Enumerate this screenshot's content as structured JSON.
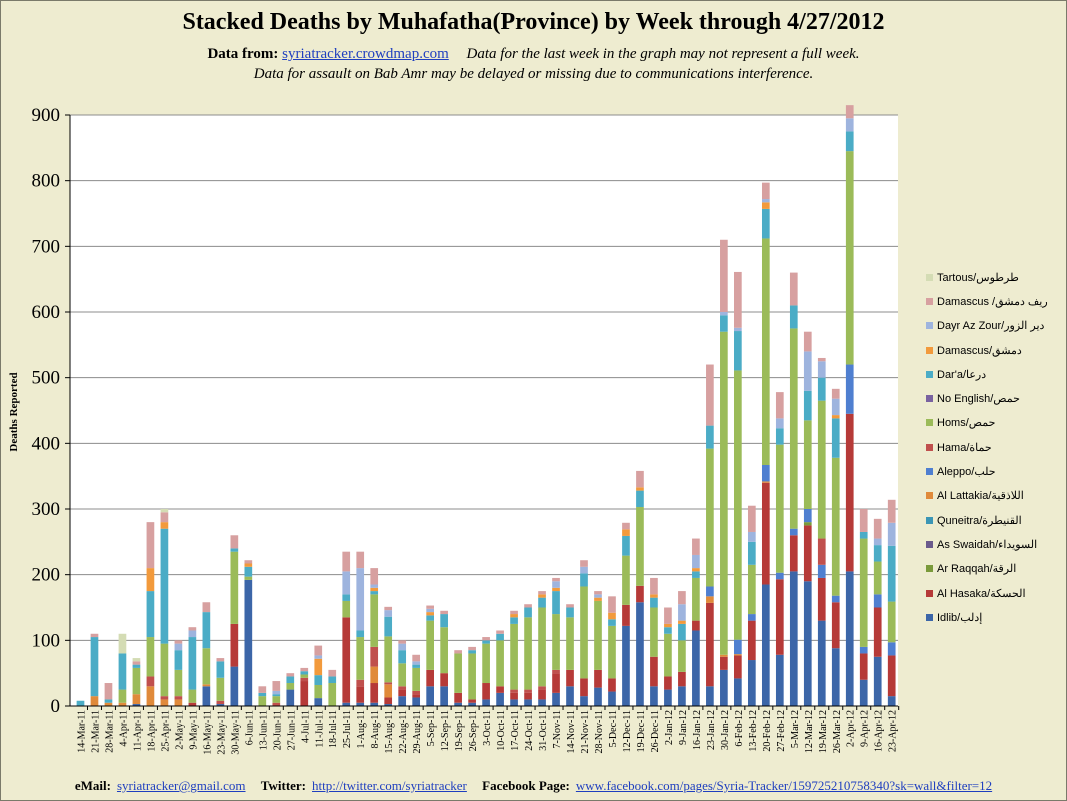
{
  "header": {
    "title": "Stacked Deaths by Muhafatha(Province) by Week through 4/27/2012",
    "data_from_label": "Data from:",
    "data_from_link": "syriatracker.crowdmap.com",
    "note1": "Data for the last week in the graph may not represent a full week.",
    "note2": "Data for assault on Bab Amr may be delayed or missing due to communications interference."
  },
  "footer": {
    "email_label": "eMail:",
    "email": "syriatracker@gmail.com",
    "twitter_label": "Twitter:",
    "twitter": "http://twitter.com/syriatracker",
    "facebook_label": "Facebook  Page:",
    "facebook": "www.facebook.com/pages/Syria-Tracker/159725210758340?sk=wall&filter=12"
  },
  "chart_data": {
    "type": "bar",
    "stacked": true,
    "title": "Stacked Deaths by Muhafatha(Province) by Week through 4/27/2012",
    "xlabel": "",
    "ylabel": "Deaths  Reported",
    "ylim": [
      0,
      900
    ],
    "yticks": [
      0,
      100,
      200,
      300,
      400,
      500,
      600,
      700,
      800,
      900
    ],
    "grid": true,
    "legend_position": "right",
    "categories": [
      "14-Mar-11",
      "21-Mar-11",
      "28-Mar-11",
      "4-Apr-11",
      "11-Apr-11",
      "18-Apr-11",
      "25-Apr-11",
      "2-May-11",
      "9-May-11",
      "16-May-11",
      "23-May-11",
      "30-May-11",
      "6-Jun-11",
      "13-Jun-11",
      "20-Jun-11",
      "27-Jun-11",
      "4-Jul-11",
      "11-Jul-11",
      "18-Jul-11",
      "25-Jul-11",
      "1-Aug-11",
      "8-Aug-11",
      "15-Aug-11",
      "22-Aug-11",
      "29-Aug-11",
      "5-Sep-11",
      "12-Sep-11",
      "19-Sep-11",
      "26-Sep-11",
      "3-Oct-11",
      "10-Oct-11",
      "17-Oct-11",
      "24-Oct-11",
      "31-Oct-11",
      "7-Nov-11",
      "14-Nov-11",
      "21-Nov-11",
      "28-Nov-11",
      "5-Dec-11",
      "12-Dec-11",
      "19-Dec-11",
      "26-Dec-11",
      "2-Jan-12",
      "9-Jan-12",
      "16-Jan-12",
      "23-Jan-12",
      "30-Jan-12",
      "6-Feb-12",
      "13-Feb-12",
      "20-Feb-12",
      "27-Feb-12",
      "5-Mar-12",
      "12-Mar-12",
      "19-Mar-12",
      "26-Mar-12",
      "2-Apr-12",
      "9-Apr-12",
      "16-Apr-12",
      "23-Apr-12"
    ],
    "series": [
      {
        "name": "Idlib/إدلب",
        "color": "#3c66a8",
        "values": [
          0,
          0,
          0,
          0,
          3,
          0,
          0,
          0,
          0,
          30,
          3,
          60,
          192,
          0,
          0,
          25,
          0,
          12,
          0,
          5,
          5,
          5,
          3,
          15,
          13,
          30,
          30,
          5,
          5,
          10,
          20,
          10,
          10,
          10,
          20,
          30,
          15,
          28,
          22,
          122,
          158,
          30,
          25,
          30,
          115,
          30,
          55,
          42,
          70,
          185,
          78,
          205,
          190,
          130,
          88,
          205,
          40,
          75,
          15
        ]
      },
      {
        "name": "Al Hasaka/الحسكة",
        "color": "#b63a38",
        "values": [
          0,
          0,
          0,
          0,
          0,
          0,
          0,
          0,
          5,
          0,
          0,
          65,
          0,
          0,
          0,
          0,
          38,
          0,
          0,
          130,
          25,
          30,
          10,
          10,
          5,
          25,
          20,
          15,
          5,
          25,
          10,
          10,
          10,
          15,
          30,
          25,
          27,
          27,
          20,
          32,
          25,
          45,
          20,
          22,
          15,
          127,
          20,
          35,
          60,
          155,
          115,
          55,
          85,
          65,
          70,
          240,
          40,
          75,
          62
        ]
      },
      {
        "name": "Ar Raqqah/الرقة",
        "color": "#7a9a3a",
        "values": [
          0,
          0,
          0,
          0,
          0,
          0,
          0,
          0,
          0,
          0,
          0,
          0,
          0,
          0,
          0,
          0,
          0,
          0,
          0,
          0,
          0,
          0,
          0,
          0,
          0,
          0,
          0,
          0,
          0,
          0,
          0,
          0,
          0,
          0,
          0,
          0,
          0,
          0,
          0,
          0,
          0,
          0,
          0,
          0,
          0,
          0,
          0,
          0,
          0,
          0,
          0,
          0,
          5,
          0,
          0,
          0,
          0,
          0,
          0
        ]
      },
      {
        "name": "As Swaidah/السويداء",
        "color": "#6a5a8c",
        "values": [
          0,
          0,
          0,
          0,
          0,
          0,
          0,
          0,
          0,
          0,
          0,
          0,
          0,
          0,
          0,
          0,
          0,
          0,
          0,
          0,
          0,
          0,
          0,
          0,
          0,
          0,
          0,
          0,
          0,
          0,
          0,
          0,
          0,
          0,
          0,
          0,
          0,
          0,
          0,
          0,
          0,
          0,
          0,
          0,
          0,
          0,
          0,
          0,
          0,
          0,
          0,
          0,
          0,
          0,
          0,
          0,
          0,
          0,
          0
        ]
      },
      {
        "name": "Quneitra/القنيطرة",
        "color": "#3b96b5",
        "values": [
          0,
          0,
          0,
          0,
          0,
          0,
          0,
          0,
          0,
          0,
          0,
          0,
          0,
          0,
          0,
          0,
          0,
          0,
          0,
          0,
          0,
          0,
          0,
          0,
          0,
          0,
          0,
          0,
          0,
          0,
          0,
          0,
          0,
          0,
          0,
          0,
          0,
          0,
          0,
          0,
          0,
          0,
          0,
          0,
          0,
          0,
          0,
          0,
          0,
          0,
          0,
          0,
          0,
          0,
          0,
          0,
          0,
          0,
          0
        ]
      },
      {
        "name": "Al Lattakia/اللاذقية",
        "color": "#e08a3a",
        "values": [
          0,
          15,
          5,
          5,
          15,
          30,
          10,
          10,
          0,
          3,
          0,
          0,
          0,
          0,
          0,
          0,
          0,
          0,
          0,
          0,
          0,
          25,
          20,
          0,
          0,
          0,
          0,
          0,
          0,
          0,
          0,
          0,
          0,
          0,
          0,
          0,
          0,
          0,
          0,
          0,
          0,
          0,
          0,
          0,
          0,
          10,
          3,
          2,
          0,
          2,
          0,
          0,
          0,
          0,
          0,
          0,
          0,
          0,
          0
        ]
      },
      {
        "name": "Aleppo/حلب",
        "color": "#4f7fd0",
        "values": [
          0,
          0,
          0,
          0,
          0,
          0,
          0,
          0,
          0,
          0,
          0,
          0,
          0,
          0,
          0,
          0,
          0,
          0,
          0,
          0,
          0,
          0,
          0,
          0,
          0,
          0,
          0,
          0,
          0,
          0,
          0,
          0,
          0,
          0,
          0,
          0,
          0,
          0,
          0,
          0,
          0,
          0,
          0,
          0,
          0,
          15,
          0,
          22,
          10,
          25,
          10,
          10,
          20,
          20,
          10,
          75,
          10,
          20,
          20
        ]
      },
      {
        "name": "Hama/حماة",
        "color": "#c0504d",
        "values": [
          0,
          0,
          0,
          0,
          0,
          15,
          5,
          5,
          0,
          0,
          5,
          0,
          0,
          0,
          5,
          0,
          5,
          0,
          0,
          0,
          10,
          30,
          3,
          5,
          5,
          0,
          0,
          0,
          0,
          0,
          0,
          5,
          5,
          5,
          5,
          0,
          0,
          0,
          0,
          0,
          0,
          0,
          0,
          0,
          0,
          0,
          0,
          0,
          0,
          0,
          0,
          0,
          0,
          40,
          0,
          0,
          0,
          0,
          0
        ]
      },
      {
        "name": "Homs/حمص",
        "color": "#9bbb59",
        "values": [
          0,
          0,
          0,
          20,
          40,
          60,
          80,
          40,
          20,
          55,
          35,
          110,
          5,
          15,
          10,
          10,
          5,
          20,
          35,
          25,
          65,
          80,
          70,
          35,
          35,
          75,
          70,
          60,
          70,
          60,
          70,
          100,
          110,
          120,
          85,
          80,
          140,
          105,
          80,
          75,
          120,
          75,
          65,
          48,
          65,
          210,
          492,
          410,
          75,
          345,
          195,
          305,
          135,
          210,
          210,
          325,
          165,
          50,
          62
        ]
      },
      {
        "name": "No English/حمص",
        "color": "#7962a0",
        "values": [
          0,
          0,
          0,
          0,
          0,
          0,
          0,
          0,
          0,
          0,
          0,
          0,
          0,
          0,
          0,
          0,
          0,
          0,
          0,
          0,
          0,
          0,
          0,
          0,
          0,
          0,
          0,
          0,
          0,
          0,
          0,
          0,
          0,
          0,
          0,
          0,
          0,
          0,
          0,
          0,
          0,
          0,
          0,
          0,
          0,
          0,
          0,
          0,
          0,
          0,
          0,
          0,
          0,
          0,
          0,
          0,
          0,
          0,
          0
        ]
      },
      {
        "name": "Dar'a/درعا",
        "color": "#4bacc6",
        "values": [
          8,
          90,
          5,
          55,
          5,
          70,
          175,
          30,
          80,
          55,
          25,
          5,
          15,
          5,
          3,
          10,
          5,
          15,
          10,
          10,
          10,
          5,
          30,
          20,
          5,
          8,
          20,
          0,
          5,
          5,
          10,
          10,
          15,
          15,
          35,
          15,
          20,
          0,
          10,
          30,
          25,
          15,
          10,
          25,
          10,
          35,
          25,
          60,
          35,
          45,
          25,
          35,
          45,
          35,
          60,
          30,
          10,
          25,
          85
        ]
      },
      {
        "name": "Damascus/دمشق",
        "color": "#f29a3c",
        "values": [
          0,
          0,
          0,
          0,
          0,
          35,
          10,
          0,
          0,
          0,
          0,
          0,
          5,
          0,
          0,
          0,
          0,
          25,
          0,
          0,
          0,
          5,
          0,
          0,
          0,
          5,
          0,
          0,
          0,
          0,
          0,
          5,
          0,
          5,
          5,
          0,
          0,
          5,
          10,
          10,
          5,
          5,
          5,
          5,
          5,
          0,
          0,
          0,
          0,
          10,
          0,
          0,
          0,
          0,
          5,
          0,
          0,
          0,
          0
        ]
      },
      {
        "name": "Dayr Az Zour/دير الزور",
        "color": "#9eb4de",
        "values": [
          0,
          0,
          0,
          0,
          0,
          0,
          0,
          10,
          10,
          0,
          0,
          0,
          0,
          0,
          5,
          0,
          0,
          5,
          0,
          35,
          95,
          5,
          10,
          10,
          5,
          5,
          0,
          0,
          0,
          0,
          0,
          0,
          0,
          0,
          10,
          0,
          10,
          5,
          0,
          0,
          0,
          0,
          0,
          25,
          20,
          0,
          5,
          5,
          15,
          5,
          15,
          0,
          60,
          25,
          25,
          20,
          0,
          10,
          35
        ]
      },
      {
        "name": "Damascus /ريف دمشق",
        "color": "#d7a0a0",
        "values": [
          0,
          5,
          25,
          0,
          5,
          70,
          15,
          5,
          5,
          15,
          5,
          20,
          5,
          10,
          15,
          5,
          5,
          15,
          10,
          30,
          25,
          25,
          5,
          5,
          10,
          5,
          5,
          5,
          5,
          5,
          5,
          5,
          5,
          5,
          5,
          5,
          10,
          5,
          25,
          10,
          25,
          25,
          25,
          20,
          25,
          93,
          110,
          85,
          40,
          25,
          40,
          50,
          30,
          5,
          15,
          20,
          35,
          30,
          35
        ]
      },
      {
        "name": "Tartous/طرطوس",
        "color": "#d4dcb4",
        "values": [
          0,
          0,
          0,
          30,
          5,
          0,
          5,
          0,
          0,
          0,
          0,
          0,
          0,
          0,
          0,
          0,
          0,
          0,
          0,
          0,
          0,
          0,
          0,
          0,
          0,
          0,
          0,
          0,
          0,
          0,
          0,
          0,
          0,
          0,
          0,
          0,
          0,
          0,
          0,
          0,
          0,
          0,
          0,
          0,
          0,
          0,
          0,
          0,
          0,
          0,
          0,
          0,
          0,
          0,
          0,
          0,
          0,
          0,
          0
        ]
      }
    ]
  }
}
